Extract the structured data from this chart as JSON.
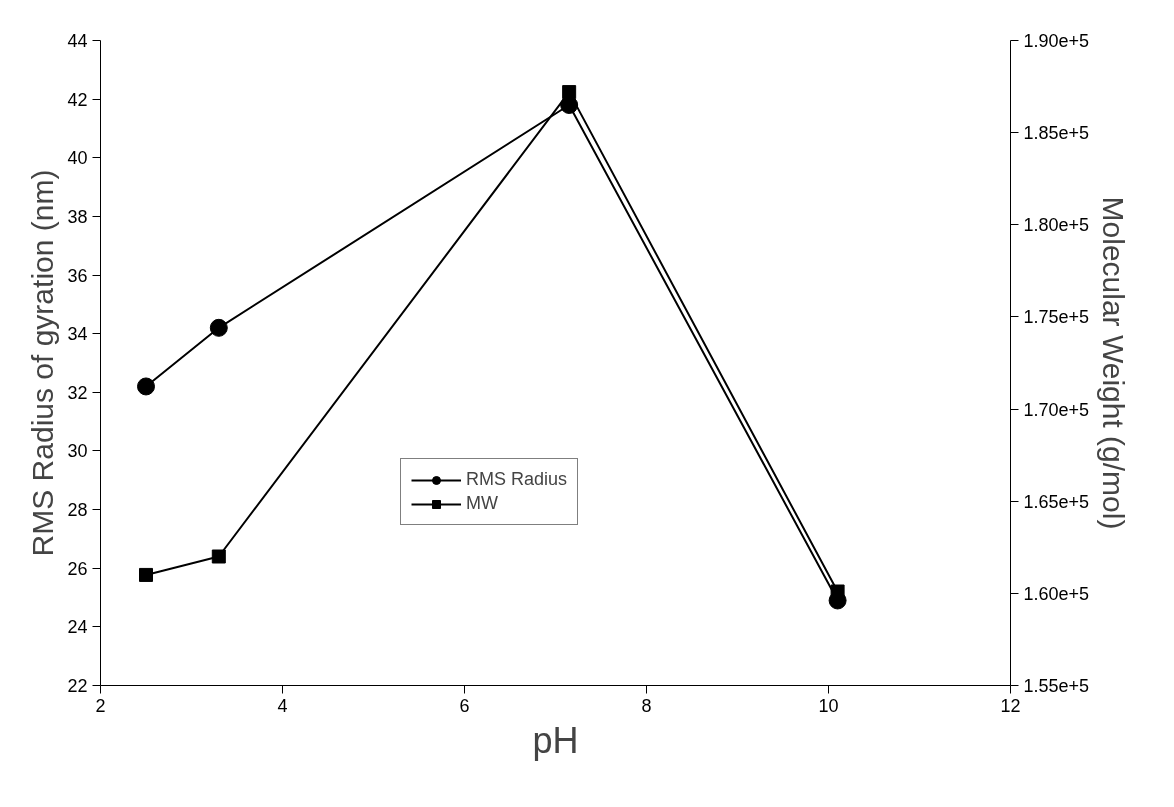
{
  "chart_data": {
    "type": "line",
    "xlabel": "pH",
    "ylabel": "RMS Radius of gyration (nm)",
    "y2label": "Molecular Weight (g/mol)",
    "x": [
      2.5,
      3.3,
      7.15,
      10.1
    ],
    "series": [
      {
        "name": "RMS Radius",
        "color": "#000000",
        "marker": "circle",
        "values": [
          32.2,
          34.2,
          41.8,
          24.9
        ]
      },
      {
        "name": "MW",
        "color": "#000000",
        "marker": "square",
        "axis": "y2",
        "values": [
          161000,
          162000,
          187200,
          160100
        ]
      }
    ],
    "xlim": [
      2,
      12
    ],
    "xticks": [
      2,
      4,
      6,
      8,
      10,
      12
    ],
    "ylim": [
      22,
      44
    ],
    "yticks": [
      22,
      24,
      26,
      28,
      30,
      32,
      34,
      36,
      38,
      40,
      42,
      44
    ],
    "y2lim": [
      155000,
      190000
    ],
    "y2ticks": [
      {
        "value": 155000,
        "label": "1.55e+5"
      },
      {
        "value": 160000,
        "label": "1.60e+5"
      },
      {
        "value": 165000,
        "label": "1.65e+5"
      },
      {
        "value": 170000,
        "label": "1.70e+5"
      },
      {
        "value": 175000,
        "label": "1.75e+5"
      },
      {
        "value": 180000,
        "label": "1.80e+5"
      },
      {
        "value": 185000,
        "label": "1.85e+5"
      },
      {
        "value": 190000,
        "label": "1.90e+5"
      }
    ],
    "grid": false,
    "legend": "center",
    "line_style": "solid"
  }
}
